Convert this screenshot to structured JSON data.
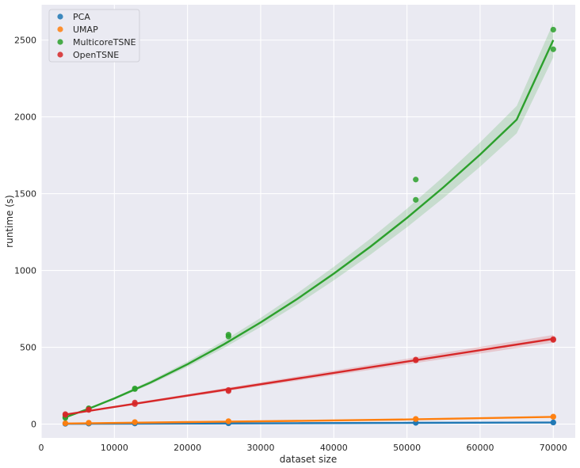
{
  "chart_data": {
    "type": "scatter",
    "xlabel": "dataset size",
    "ylabel": "runtime (s)",
    "xlim": [
      0,
      73000
    ],
    "ylim": [
      -90,
      2730
    ],
    "xticks": [
      0,
      10000,
      20000,
      30000,
      40000,
      50000,
      60000,
      70000
    ],
    "yticks": [
      0,
      500,
      1000,
      1500,
      2000,
      2500
    ],
    "grid": true,
    "legend": "top-left",
    "series": [
      {
        "name": "PCA",
        "color": "#1f77b4",
        "points": [
          [
            3300,
            2
          ],
          [
            3300,
            3
          ],
          [
            6500,
            3
          ],
          [
            6500,
            4
          ],
          [
            12800,
            4
          ],
          [
            12800,
            5
          ],
          [
            25600,
            5
          ],
          [
            25600,
            6
          ],
          [
            51200,
            8
          ],
          [
            51200,
            9
          ],
          [
            70000,
            10
          ],
          [
            70000,
            11
          ]
        ],
        "fit": [
          [
            3300,
            2
          ],
          [
            20000,
            4
          ],
          [
            35000,
            6
          ],
          [
            50000,
            8
          ],
          [
            70000,
            10
          ]
        ]
      },
      {
        "name": "UMAP",
        "color": "#ff7f0e",
        "points": [
          [
            3300,
            5
          ],
          [
            3300,
            6
          ],
          [
            6500,
            8
          ],
          [
            6500,
            9
          ],
          [
            12800,
            12
          ],
          [
            12800,
            13
          ],
          [
            25600,
            18
          ],
          [
            25600,
            19
          ],
          [
            51200,
            32
          ],
          [
            51200,
            34
          ],
          [
            70000,
            47
          ],
          [
            70000,
            49
          ]
        ],
        "fit": [
          [
            3300,
            4
          ],
          [
            20000,
            13
          ],
          [
            35000,
            21
          ],
          [
            50000,
            30
          ],
          [
            70000,
            47
          ]
        ]
      },
      {
        "name": "MulticoreTSNE",
        "color": "#2ca02c",
        "points": [
          [
            3300,
            40
          ],
          [
            3300,
            45
          ],
          [
            6500,
            100
          ],
          [
            6500,
            103
          ],
          [
            12800,
            228
          ],
          [
            12800,
            232
          ],
          [
            25600,
            570
          ],
          [
            25600,
            582
          ],
          [
            51200,
            1460
          ],
          [
            51200,
            1592
          ],
          [
            70000,
            2440
          ],
          [
            70000,
            2568
          ]
        ],
        "fit": [
          [
            3300,
            44
          ],
          [
            6500,
            100
          ],
          [
            10000,
            167
          ],
          [
            15000,
            272
          ],
          [
            20000,
            390
          ],
          [
            25000,
            520
          ],
          [
            30000,
            662
          ],
          [
            35000,
            815
          ],
          [
            40000,
            980
          ],
          [
            45000,
            1155
          ],
          [
            50000,
            1342
          ],
          [
            55000,
            1542
          ],
          [
            60000,
            1755
          ],
          [
            65000,
            1982
          ],
          [
            70000,
            2500
          ]
        ]
      },
      {
        "name": "OpenTSNE",
        "color": "#d62728",
        "points": [
          [
            3300,
            60
          ],
          [
            3300,
            65
          ],
          [
            6500,
            92
          ],
          [
            6500,
            96
          ],
          [
            12800,
            130
          ],
          [
            12800,
            140
          ],
          [
            25600,
            215
          ],
          [
            25600,
            222
          ],
          [
            51200,
            415
          ],
          [
            51200,
            420
          ],
          [
            70000,
            548
          ],
          [
            70000,
            553
          ]
        ],
        "fit": [
          [
            3300,
            62
          ],
          [
            70000,
            555
          ]
        ]
      }
    ]
  }
}
